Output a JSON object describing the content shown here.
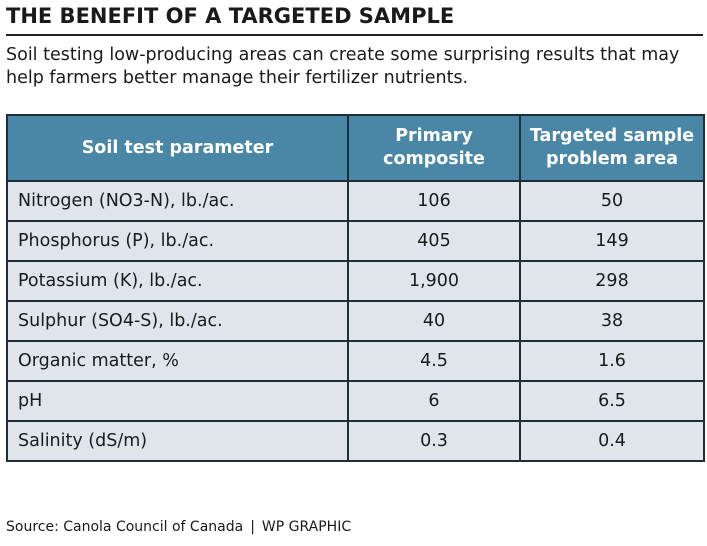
{
  "title": "THE BENEFIT OF A TARGETED SAMPLE",
  "subtitle": "Soil testing low-producing areas can create some surprising results that may help farmers better manage their fertilizer nutrients.",
  "table": {
    "headers": [
      "Soil test parameter",
      "Primary composite",
      "Targeted sample problem area"
    ],
    "rows": [
      [
        "Nitrogen (NO3-N), lb./ac.",
        "106",
        "50"
      ],
      [
        "Phosphorus (P), lb./ac.",
        "405",
        "149"
      ],
      [
        "Potassium (K), lb./ac.",
        "1,900",
        "298"
      ],
      [
        "Sulphur (SO4-S), lb./ac.",
        "40",
        "38"
      ],
      [
        "Organic matter, %",
        "4.5",
        "1.6"
      ],
      [
        "pH",
        "6",
        "6.5"
      ],
      [
        "Salinity (dS/m)",
        "0.3",
        "0.4"
      ]
    ]
  },
  "source": {
    "credit": "Source: Canola Council of Canada",
    "separator": "|",
    "graphic": "WP GRAPHIC"
  },
  "colors": {
    "header_bg": "#4a87a6",
    "row_bg": "#dfe5ea",
    "border": "#1f2f3a"
  }
}
